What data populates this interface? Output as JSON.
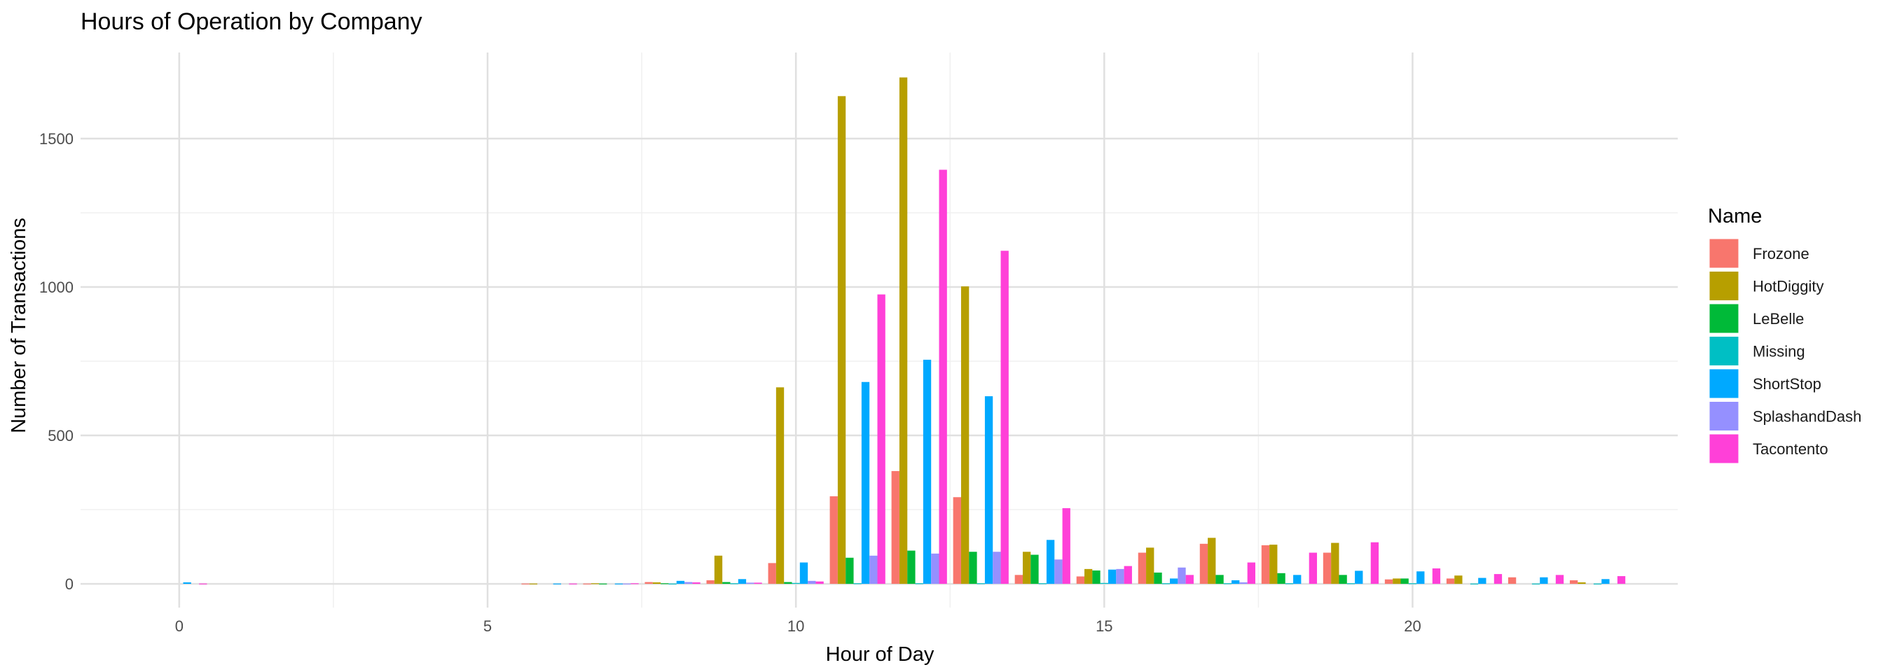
{
  "chart_data": {
    "type": "bar",
    "title": "Hours of Operation by Company",
    "xlabel": "Hour of Day",
    "ylabel": "Number of Transactions",
    "xlim": [
      -1.6,
      24.3
    ],
    "ylim": [
      -80,
      1790
    ],
    "xticks": [
      0,
      5,
      10,
      15,
      20
    ],
    "yticks": [
      0,
      500,
      1000,
      1500
    ],
    "grid": true,
    "legend_title": "Name",
    "legend_position": "right",
    "categories": [
      0,
      1,
      2,
      3,
      4,
      5,
      6,
      7,
      8,
      9,
      10,
      11,
      12,
      13,
      14,
      15,
      16,
      17,
      18,
      19,
      20,
      21,
      22,
      23
    ],
    "series": [
      {
        "name": "Frozone",
        "color": "#F8766D",
        "values": [
          0,
          0,
          0,
          0,
          0,
          0,
          1,
          1,
          6,
          12,
          70,
          295,
          380,
          292,
          30,
          25,
          105,
          135,
          130,
          105,
          15,
          18,
          22,
          12
        ]
      },
      {
        "name": "HotDiggity",
        "color": "#B79F00",
        "values": [
          0,
          0,
          0,
          0,
          0,
          0,
          1,
          2,
          5,
          95,
          662,
          1643,
          1706,
          1002,
          108,
          50,
          122,
          155,
          132,
          138,
          18,
          28,
          0,
          5
        ]
      },
      {
        "name": "LeBelle",
        "color": "#00BA38",
        "values": [
          0,
          0,
          0,
          0,
          0,
          0,
          0,
          1,
          2,
          6,
          6,
          88,
          112,
          108,
          98,
          45,
          38,
          30,
          36,
          30,
          18,
          0,
          0,
          0
        ]
      },
      {
        "name": "Missing",
        "color": "#00BFC4",
        "values": [
          0,
          0,
          0,
          0,
          0,
          0,
          0,
          0,
          1,
          2,
          3,
          2,
          2,
          2,
          2,
          3,
          2,
          2,
          2,
          2,
          2,
          1,
          1,
          1
        ]
      },
      {
        "name": "ShortStop",
        "color": "#00A9FF",
        "values": [
          5,
          0,
          0,
          0,
          0,
          0,
          1,
          1,
          10,
          16,
          72,
          680,
          755,
          632,
          148,
          48,
          18,
          12,
          30,
          44,
          42,
          20,
          22,
          16
        ]
      },
      {
        "name": "SplashandDash",
        "color": "#9590FF",
        "values": [
          0,
          0,
          0,
          0,
          0,
          0,
          0,
          1,
          6,
          4,
          10,
          95,
          102,
          108,
          82,
          50,
          55,
          5,
          0,
          0,
          0,
          0,
          0,
          0
        ]
      },
      {
        "name": "Tacontento",
        "color": "#FF40D8",
        "values": [
          1,
          0,
          0,
          0,
          0,
          0,
          1,
          2,
          5,
          4,
          8,
          975,
          1395,
          1122,
          255,
          60,
          30,
          72,
          105,
          140,
          52,
          33,
          30,
          26
        ]
      }
    ]
  }
}
